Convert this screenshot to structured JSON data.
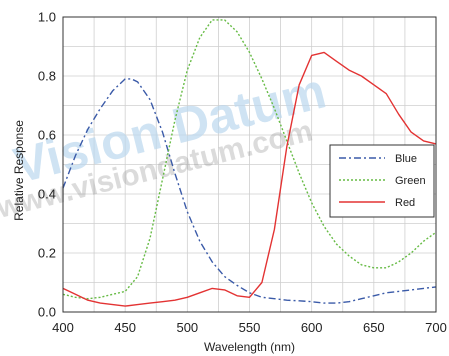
{
  "chart_data": {
    "type": "line",
    "title": "",
    "xlabel": "Wavelength (nm)",
    "ylabel": "Relative Response",
    "xlim": [
      400,
      700
    ],
    "ylim": [
      0.0,
      1.0
    ],
    "xticks": [
      400,
      450,
      500,
      550,
      600,
      650,
      700
    ],
    "yticks": [
      "0.0",
      "0.2",
      "0.4",
      "0.6",
      "0.8",
      "1.0"
    ],
    "grid": true,
    "legend_position": "right",
    "series": [
      {
        "name": "Blue",
        "color": "#3a5aa8",
        "style": "dashdot",
        "points": [
          [
            400,
            0.42
          ],
          [
            410,
            0.53
          ],
          [
            420,
            0.62
          ],
          [
            430,
            0.69
          ],
          [
            440,
            0.75
          ],
          [
            450,
            0.79
          ],
          [
            455,
            0.79
          ],
          [
            460,
            0.78
          ],
          [
            470,
            0.72
          ],
          [
            480,
            0.61
          ],
          [
            490,
            0.47
          ],
          [
            500,
            0.34
          ],
          [
            510,
            0.24
          ],
          [
            520,
            0.17
          ],
          [
            530,
            0.12
          ],
          [
            540,
            0.09
          ],
          [
            550,
            0.065
          ],
          [
            560,
            0.05
          ],
          [
            570,
            0.045
          ],
          [
            580,
            0.04
          ],
          [
            590,
            0.038
          ],
          [
            600,
            0.035
          ],
          [
            610,
            0.03
          ],
          [
            620,
            0.03
          ],
          [
            630,
            0.035
          ],
          [
            640,
            0.045
          ],
          [
            650,
            0.055
          ],
          [
            660,
            0.065
          ],
          [
            670,
            0.07
          ],
          [
            680,
            0.075
          ],
          [
            690,
            0.08
          ],
          [
            700,
            0.085
          ]
        ]
      },
      {
        "name": "Green",
        "color": "#66bb44",
        "style": "dotted",
        "points": [
          [
            400,
            0.06
          ],
          [
            410,
            0.05
          ],
          [
            420,
            0.045
          ],
          [
            430,
            0.05
          ],
          [
            440,
            0.06
          ],
          [
            450,
            0.07
          ],
          [
            460,
            0.12
          ],
          [
            470,
            0.25
          ],
          [
            480,
            0.45
          ],
          [
            490,
            0.65
          ],
          [
            500,
            0.82
          ],
          [
            510,
            0.93
          ],
          [
            520,
            0.99
          ],
          [
            530,
            0.99
          ],
          [
            540,
            0.95
          ],
          [
            550,
            0.88
          ],
          [
            560,
            0.79
          ],
          [
            570,
            0.69
          ],
          [
            580,
            0.58
          ],
          [
            590,
            0.47
          ],
          [
            600,
            0.37
          ],
          [
            610,
            0.29
          ],
          [
            620,
            0.23
          ],
          [
            630,
            0.19
          ],
          [
            640,
            0.16
          ],
          [
            650,
            0.15
          ],
          [
            660,
            0.15
          ],
          [
            670,
            0.17
          ],
          [
            680,
            0.2
          ],
          [
            690,
            0.24
          ],
          [
            700,
            0.27
          ]
        ]
      },
      {
        "name": "Red",
        "color": "#e33333",
        "style": "solid",
        "points": [
          [
            400,
            0.08
          ],
          [
            410,
            0.06
          ],
          [
            420,
            0.04
          ],
          [
            430,
            0.03
          ],
          [
            440,
            0.025
          ],
          [
            450,
            0.02
          ],
          [
            460,
            0.025
          ],
          [
            470,
            0.03
          ],
          [
            480,
            0.035
          ],
          [
            490,
            0.04
          ],
          [
            500,
            0.05
          ],
          [
            510,
            0.065
          ],
          [
            520,
            0.08
          ],
          [
            530,
            0.075
          ],
          [
            540,
            0.055
          ],
          [
            550,
            0.05
          ],
          [
            560,
            0.1
          ],
          [
            570,
            0.28
          ],
          [
            580,
            0.56
          ],
          [
            590,
            0.77
          ],
          [
            600,
            0.87
          ],
          [
            610,
            0.88
          ],
          [
            620,
            0.85
          ],
          [
            630,
            0.82
          ],
          [
            640,
            0.8
          ],
          [
            650,
            0.77
          ],
          [
            660,
            0.74
          ],
          [
            670,
            0.67
          ],
          [
            680,
            0.61
          ],
          [
            690,
            0.58
          ],
          [
            700,
            0.57
          ]
        ]
      }
    ]
  },
  "watermark": {
    "large": "Vision Datum",
    "url": "www.visiondatum.com",
    "color": "#bcd8ee"
  }
}
